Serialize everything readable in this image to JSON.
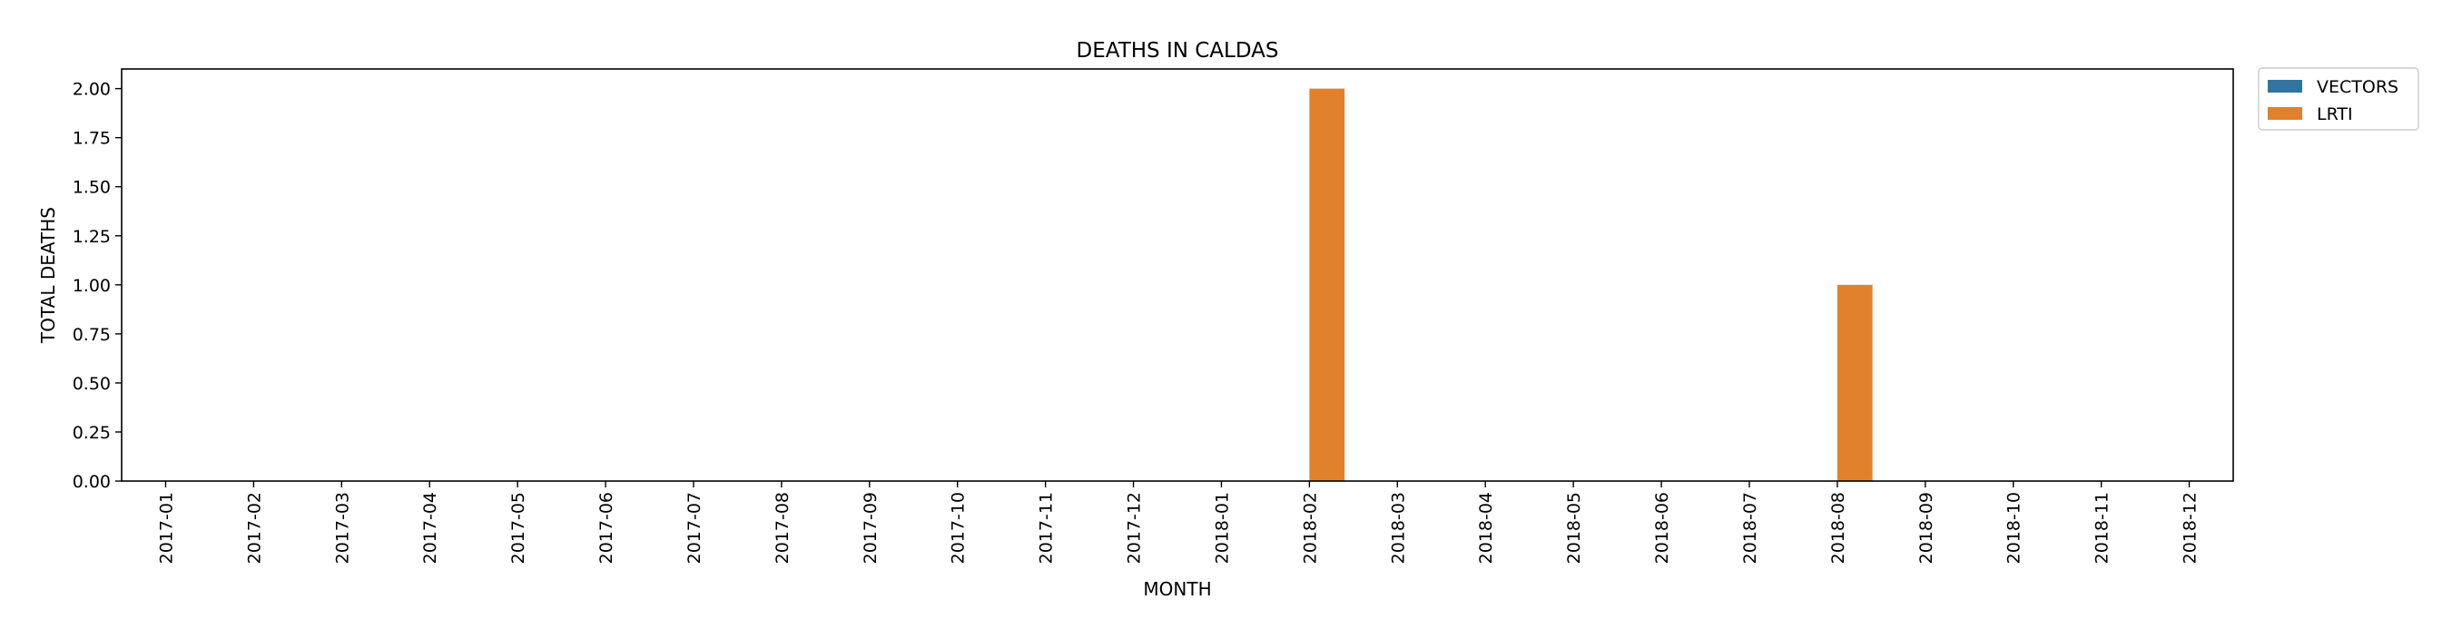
{
  "chart_data": {
    "type": "bar",
    "title": "DEATHS IN CALDAS",
    "xlabel": "MONTH",
    "ylabel": "TOTAL DEATHS",
    "ylim": [
      0,
      2.1
    ],
    "yticks": [
      "0.00",
      "0.25",
      "0.50",
      "0.75",
      "1.00",
      "1.25",
      "1.50",
      "1.75",
      "2.00"
    ],
    "ytick_values": [
      0,
      0.25,
      0.5,
      0.75,
      1.0,
      1.25,
      1.5,
      1.75,
      2.0
    ],
    "categories": [
      "2017-01",
      "2017-02",
      "2017-03",
      "2017-04",
      "2017-05",
      "2017-06",
      "2017-07",
      "2017-08",
      "2017-09",
      "2017-10",
      "2017-11",
      "2017-12",
      "2018-01",
      "2018-02",
      "2018-03",
      "2018-04",
      "2018-05",
      "2018-06",
      "2018-07",
      "2018-08",
      "2018-09",
      "2018-10",
      "2018-11",
      "2018-12"
    ],
    "series": [
      {
        "name": "VECTORS",
        "color": "#3274a1",
        "values": [
          0,
          0,
          0,
          0,
          0,
          0,
          0,
          0,
          0,
          0,
          0,
          0,
          0,
          0,
          0,
          0,
          0,
          0,
          0,
          0,
          0,
          0,
          0,
          0
        ]
      },
      {
        "name": "LRTI",
        "color": "#e1812c",
        "values": [
          0,
          0,
          0,
          0,
          0,
          0,
          0,
          0,
          0,
          0,
          0,
          0,
          0,
          2,
          0,
          0,
          0,
          0,
          0,
          1,
          0,
          0,
          0,
          0
        ]
      }
    ],
    "legend_position": "outside-top-right",
    "grid": false
  }
}
